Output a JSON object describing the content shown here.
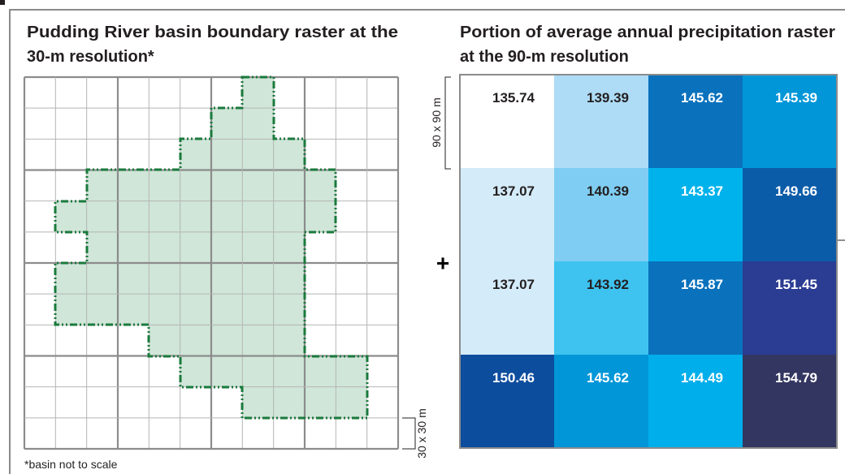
{
  "left_panel": {
    "title_lines": [
      "Pudding River basin boundary raster at the",
      "30-m resolution*"
    ],
    "cell_label": "30 x 30 m",
    "footnote": "*basin not to scale"
  },
  "operator": "+",
  "right_panel": {
    "title_lines": [
      "Portion of average annual precipitation raster",
      "at the 90-m resolution"
    ],
    "cell_label": "90 x 90 m",
    "rows": [
      [
        "135.74",
        "139.39",
        "145.62",
        "145.39"
      ],
      [
        "137.07",
        "140.39",
        "143.37",
        "149.66"
      ],
      [
        "137.07",
        "143.92",
        "145.87",
        "151.45"
      ],
      [
        "150.46",
        "145.62",
        "144.49",
        "154.79"
      ]
    ],
    "fills": [
      [
        "#ffffff",
        "#aedcf7",
        "#0a72bd",
        "#0096d8"
      ],
      [
        "#d4ebf9",
        "#7fcdf2",
        "#00b2eb",
        "#0b5ca8"
      ],
      [
        "#d4ebf9",
        "#3ec3f0",
        "#0a72bd",
        "#2b3c93"
      ],
      [
        "#0d4d9d",
        "#0096d8",
        "#00aeeb",
        "#333660"
      ]
    ]
  }
}
